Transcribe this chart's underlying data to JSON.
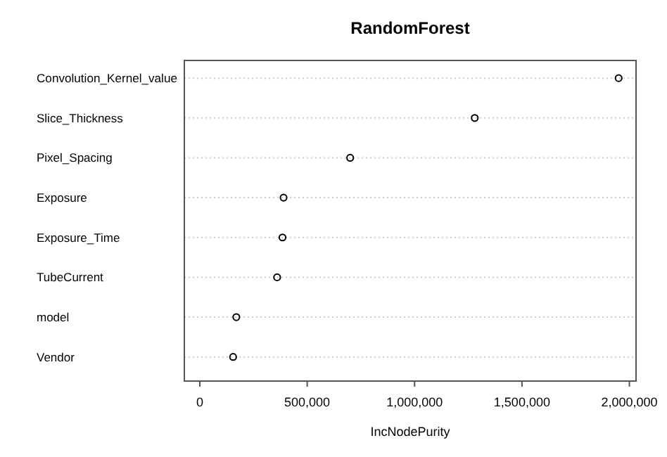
{
  "chart_data": {
    "type": "scatter",
    "orientation": "horizontal",
    "title": "RandomForest",
    "xlabel": "IncNodePurity",
    "categories": [
      "Convolution_Kernel_value",
      "Slice_Thickness",
      "Pixel_Spacing",
      "Exposure",
      "Exposure_Time",
      "TubeCurrent",
      "model",
      "Vendor"
    ],
    "values": [
      1950000,
      1280000,
      700000,
      390000,
      385000,
      360000,
      170000,
      155000
    ],
    "color": "#000000",
    "marker": "circle",
    "grid": "y",
    "xlim": [
      -72000,
      2031000
    ],
    "xticks": [
      0,
      {
        "value": 500000,
        "label": "500,000"
      },
      {
        "value": 1000000,
        "label": "1,000,000"
      },
      {
        "value": 1500000,
        "label": "1,500,000"
      },
      {
        "value": 2000000,
        "label": "2,000,000"
      }
    ]
  }
}
